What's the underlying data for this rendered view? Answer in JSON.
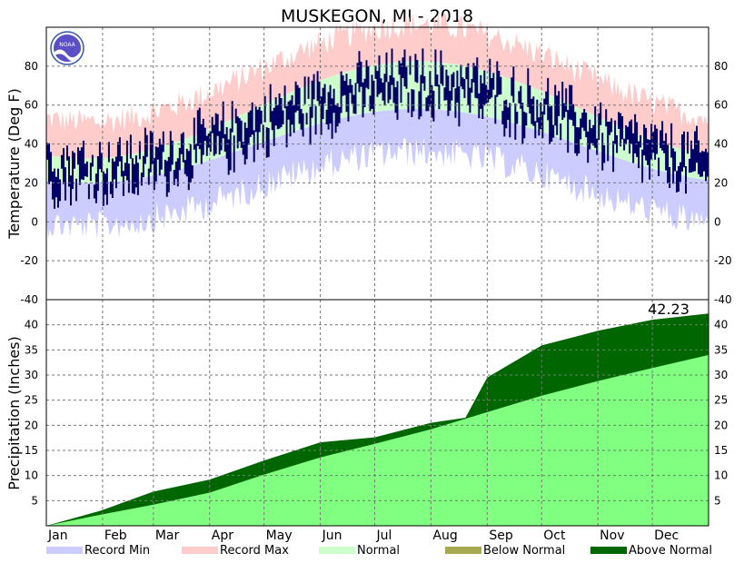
{
  "chart_data": [
    {
      "type": "area",
      "title": "MUSKEGON, MI - 2018",
      "ylabel": "Temperature (Deg F)",
      "ylim": [
        -40,
        100
      ],
      "yticks": [
        -40,
        -20,
        0,
        20,
        40,
        60,
        80
      ],
      "grid": true,
      "months": [
        "Jan",
        "Feb",
        "Mar",
        "Apr",
        "May",
        "Jun",
        "Jul",
        "Aug",
        "Sep",
        "Oct",
        "Nov",
        "Dec"
      ],
      "series": [
        {
          "name": "Record Min",
          "color": "#ccccff"
        },
        {
          "name": "Record Max",
          "color": "#ffcccc"
        },
        {
          "name": "Normal",
          "color": "#ccffcc"
        }
      ],
      "observed_high_low_color": "#000066"
    },
    {
      "type": "area",
      "ylabel": "Precipitation (Inches)",
      "ylim": [
        0,
        45
      ],
      "yticks": [
        5,
        10,
        15,
        20,
        25,
        30,
        35,
        40
      ],
      "grid": true,
      "series": [
        {
          "name": "Normal",
          "color": "#80ff80",
          "x": [
            0,
            30,
            59,
            90,
            120,
            151,
            181,
            212,
            243,
            273,
            304,
            334,
            365
          ],
          "values": [
            0,
            2.2,
            4.2,
            6.6,
            10.2,
            13.6,
            16.3,
            19.2,
            22.6,
            25.9,
            28.8,
            31.4,
            34.0
          ]
        },
        {
          "name": "Observed",
          "color": "#006600",
          "x": [
            0,
            30,
            59,
            90,
            120,
            151,
            181,
            212,
            231,
            243,
            273,
            304,
            334,
            365
          ],
          "values": [
            0,
            3.0,
            6.8,
            9.2,
            13.0,
            16.6,
            17.6,
            20.5,
            21.5,
            29.5,
            35.9,
            38.8,
            41.0,
            42.23
          ]
        }
      ],
      "total_label": "42.23"
    }
  ],
  "legend": [
    {
      "label": "Record Min",
      "color": "#ccccff"
    },
    {
      "label": "Record Max",
      "color": "#ffcccc"
    },
    {
      "label": "Normal",
      "color": "#ccffcc"
    },
    {
      "label": "Below Normal",
      "color": "#a8a850"
    },
    {
      "label": "Above Normal",
      "color": "#006600"
    }
  ],
  "logo_text": "NOAA"
}
